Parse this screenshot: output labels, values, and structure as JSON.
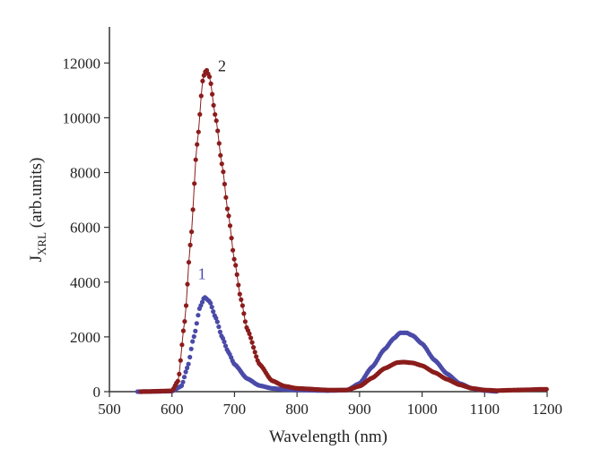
{
  "chart_data": {
    "type": "scatter",
    "title": "",
    "xlabel": "Wavelength (nm)",
    "ylabel_main": "J",
    "ylabel_sub": "XRL",
    "ylabel_rest": " (arb.units)",
    "xlim": [
      500,
      1200
    ],
    "ylim": [
      0,
      12500
    ],
    "x_ticks": [
      500,
      600,
      700,
      800,
      900,
      1000,
      1100,
      1200
    ],
    "y_ticks": [
      0,
      2000,
      4000,
      6000,
      8000,
      10000,
      12000
    ],
    "grid": false,
    "legend": "none",
    "series": [
      {
        "name": "1",
        "color": "#4a4aa8",
        "style": "dots",
        "points": [
          [
            545,
            0
          ],
          [
            600,
            20
          ],
          [
            615,
            200
          ],
          [
            625,
            900
          ],
          [
            635,
            2000
          ],
          [
            645,
            3100
          ],
          [
            652,
            3450
          ],
          [
            660,
            3300
          ],
          [
            670,
            2700
          ],
          [
            680,
            2000
          ],
          [
            690,
            1450
          ],
          [
            700,
            1000
          ],
          [
            720,
            480
          ],
          [
            740,
            220
          ],
          [
            760,
            120
          ],
          [
            780,
            80
          ],
          [
            800,
            60
          ],
          [
            850,
            40
          ],
          [
            880,
            60
          ],
          [
            900,
            300
          ],
          [
            920,
            900
          ],
          [
            940,
            1550
          ],
          [
            955,
            1950
          ],
          [
            965,
            2150
          ],
          [
            975,
            2150
          ],
          [
            985,
            2050
          ],
          [
            1000,
            1750
          ],
          [
            1020,
            1150
          ],
          [
            1040,
            650
          ],
          [
            1060,
            300
          ],
          [
            1080,
            120
          ],
          [
            1100,
            40
          ],
          [
            1120,
            10
          ]
        ]
      },
      {
        "name": "2",
        "color": "#8b1c1c",
        "style": "dots-line",
        "points": [
          [
            550,
            0
          ],
          [
            600,
            30
          ],
          [
            610,
            400
          ],
          [
            620,
            2500
          ],
          [
            630,
            5500
          ],
          [
            640,
            9000
          ],
          [
            650,
            11500
          ],
          [
            655,
            11750
          ],
          [
            660,
            11500
          ],
          [
            670,
            10000
          ],
          [
            680,
            8300
          ],
          [
            690,
            6500
          ],
          [
            700,
            4800
          ],
          [
            710,
            3400
          ],
          [
            720,
            2300
          ],
          [
            740,
            1000
          ],
          [
            760,
            400
          ],
          [
            780,
            200
          ],
          [
            800,
            120
          ],
          [
            850,
            60
          ],
          [
            880,
            60
          ],
          [
            900,
            200
          ],
          [
            920,
            500
          ],
          [
            940,
            850
          ],
          [
            960,
            1060
          ],
          [
            970,
            1080
          ],
          [
            985,
            1050
          ],
          [
            1000,
            950
          ],
          [
            1020,
            700
          ],
          [
            1040,
            450
          ],
          [
            1060,
            250
          ],
          [
            1080,
            120
          ],
          [
            1100,
            60
          ],
          [
            1120,
            40
          ],
          [
            1150,
            60
          ],
          [
            1200,
            90
          ]
        ]
      }
    ],
    "annotations": [
      {
        "text": "2",
        "x": 680,
        "y": 11700,
        "series": 1
      },
      {
        "text": "1",
        "x": 648,
        "y": 4100,
        "series": 0
      }
    ]
  }
}
